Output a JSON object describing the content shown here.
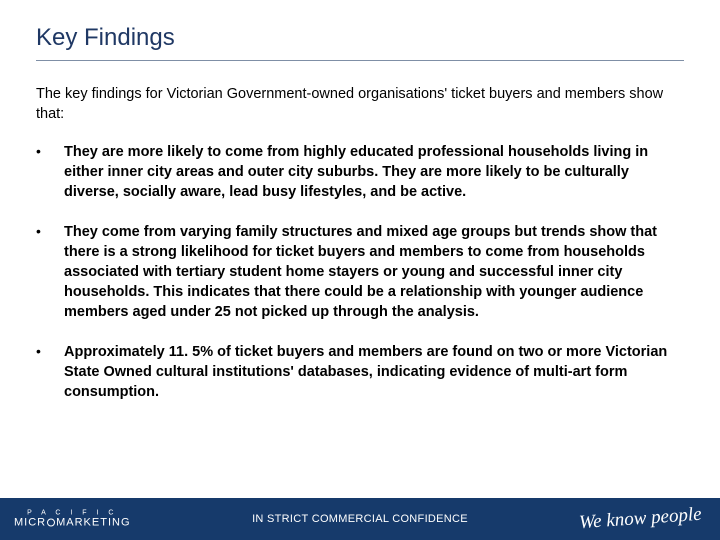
{
  "title": "Key Findings",
  "intro": "The key findings for Victorian Government-owned organisations' ticket buyers and members show that:",
  "bullets": [
    "They are more likely to come from highly educated professional households living in either inner city areas and outer city suburbs.  They are more likely to be culturally diverse, socially aware, lead busy lifestyles, and be active.",
    "They come from varying family structures and mixed age groups but trends show that there is a strong likelihood for ticket buyers and members to come from households associated with tertiary student home stayers or young and successful inner city households. This indicates that there could be a relationship with younger audience members aged under 25 not picked up through the analysis.",
    "Approximately 11. 5% of ticket buyers and members are found on two or more Victorian State Owned cultural institutions' databases, indicating evidence of multi-art form consumption."
  ],
  "footer": {
    "brand_top": "P A C I F I C",
    "brand_micro": "MICR",
    "brand_marketing": "MARKETING",
    "center": "IN STRICT COMMERCIAL CONFIDENCE",
    "tagline": "We know people"
  },
  "colors": {
    "title_color": "#1f3864",
    "rule_color": "#7f8fa6",
    "text_color": "#000000",
    "footer_bg": "#163a6b",
    "footer_text": "#ffffff"
  },
  "typography": {
    "title_fontsize": 24,
    "body_fontsize": 14.5,
    "footer_center_fontsize": 11,
    "tagline_fontsize": 19
  }
}
